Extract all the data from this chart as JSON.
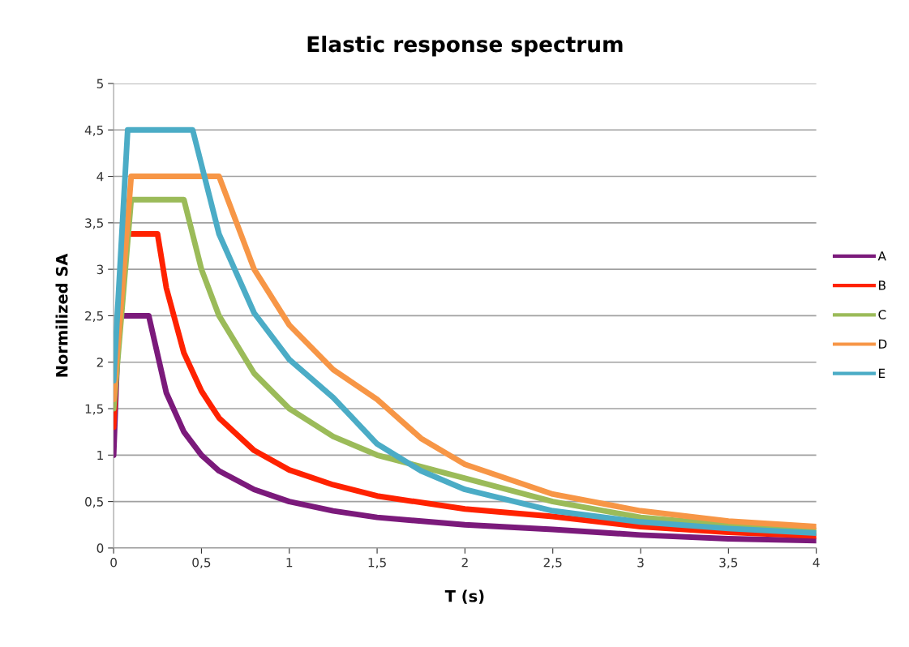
{
  "chart_data": {
    "type": "line",
    "title": "Elastic response spectrum",
    "xlabel": "T (s)",
    "ylabel": "Normilized SA",
    "xlim": [
      0,
      4
    ],
    "ylim": [
      0,
      5
    ],
    "xticks": [
      0,
      {
        "value": 0.5,
        "label": "0,5"
      },
      1,
      {
        "value": 1.5,
        "label": "1,5"
      },
      2,
      {
        "value": 2.5,
        "label": "2,5"
      },
      3,
      {
        "value": 3.5,
        "label": "3,5"
      },
      4
    ],
    "yticks": [
      0,
      {
        "value": 0.5,
        "label": "0,5"
      },
      1,
      {
        "value": 1.5,
        "label": "1,5"
      },
      2,
      {
        "value": 2.5,
        "label": "2,5"
      },
      3,
      {
        "value": 3.5,
        "label": "3,5"
      },
      4,
      {
        "value": 4.5,
        "label": "4,5"
      },
      5
    ],
    "grid": "y",
    "legend": "right",
    "marker": "none",
    "line_style": "solid",
    "series": [
      {
        "name": "A",
        "color": "#7b1a7b",
        "x": [
          0,
          0.03,
          0.2,
          0.3,
          0.4,
          0.5,
          0.6,
          0.8,
          1.0,
          1.25,
          1.5,
          2.0,
          2.5,
          3.0,
          3.5,
          4.0
        ],
        "values": [
          1.0,
          2.5,
          2.5,
          1.67,
          1.25,
          1.0,
          0.83,
          0.63,
          0.5,
          0.4,
          0.33,
          0.25,
          0.2,
          0.14,
          0.1,
          0.08
        ]
      },
      {
        "name": "B",
        "color": "#ff2200",
        "x": [
          0,
          0.05,
          0.25,
          0.3,
          0.4,
          0.5,
          0.6,
          0.8,
          1.0,
          1.25,
          1.5,
          2.0,
          2.5,
          3.0,
          3.5,
          4.0
        ],
        "values": [
          1.3,
          3.38,
          3.38,
          2.8,
          2.1,
          1.69,
          1.4,
          1.05,
          0.84,
          0.68,
          0.56,
          0.42,
          0.34,
          0.23,
          0.17,
          0.13
        ]
      },
      {
        "name": "C",
        "color": "#9bbb59",
        "x": [
          0,
          0.1,
          0.4,
          0.5,
          0.6,
          0.8,
          1.0,
          1.25,
          1.5,
          2.0,
          2.5,
          3.0,
          3.5,
          4.0
        ],
        "values": [
          1.5,
          3.75,
          3.75,
          3.0,
          2.5,
          1.88,
          1.5,
          1.2,
          1.0,
          0.75,
          0.5,
          0.33,
          0.25,
          0.19
        ]
      },
      {
        "name": "D",
        "color": "#f79646",
        "x": [
          0,
          0.1,
          0.6,
          0.8,
          1.0,
          1.25,
          1.5,
          1.75,
          2.0,
          2.5,
          3.0,
          3.5,
          4.0
        ],
        "values": [
          1.6,
          4.0,
          4.0,
          3.0,
          2.4,
          1.92,
          1.6,
          1.18,
          0.9,
          0.58,
          0.4,
          0.29,
          0.23
        ]
      },
      {
        "name": "E",
        "color": "#4bacc6",
        "x": [
          0,
          0.08,
          0.45,
          0.6,
          0.8,
          1.0,
          1.25,
          1.5,
          1.75,
          2.0,
          2.5,
          3.0,
          3.5,
          4.0
        ],
        "values": [
          1.8,
          4.5,
          4.5,
          3.38,
          2.53,
          2.03,
          1.62,
          1.12,
          0.83,
          0.63,
          0.4,
          0.28,
          0.21,
          0.16
        ]
      }
    ]
  }
}
